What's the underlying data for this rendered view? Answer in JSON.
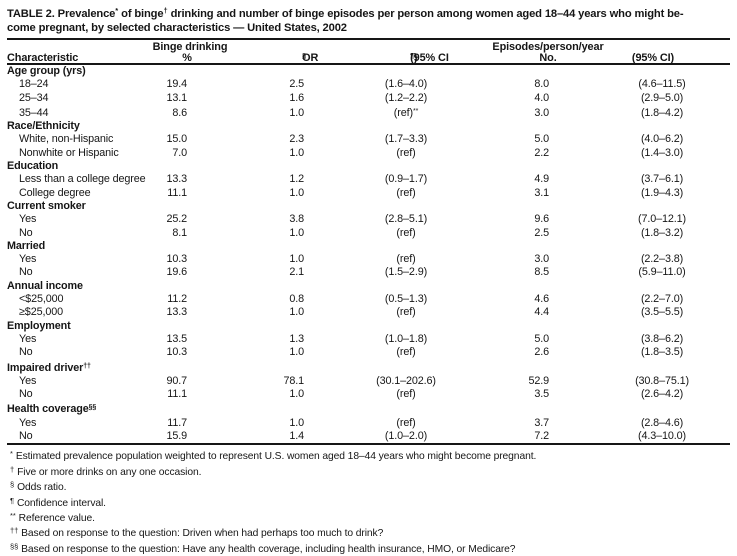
{
  "title": {
    "line1_part1": "TABLE 2. Prevalence",
    "line1_sup1": "*",
    "line1_part2": " of binge",
    "line1_sup2": "†",
    "line1_part3": " drinking and number of binge episodes per person among women aged 18–44 years who might be-",
    "line2": "come pregnant, by selected characteristics — United States, 2002"
  },
  "header": {
    "group_binge": "Binge drinking",
    "group_episodes": "Episodes/person/year",
    "characteristic": "Characteristic",
    "pct": "%",
    "or_label": "OR",
    "or_sup": "§",
    "ci1_pre": "(95% CI",
    "ci1_sup": "¶",
    "ci1_post": ")",
    "no_label": "No.",
    "ci2": "(95% CI)"
  },
  "table": {
    "rows": [
      {
        "type": "section",
        "label": "Age group (yrs)"
      },
      {
        "type": "data",
        "label": "18–24",
        "pct": "19.4",
        "or": "2.5",
        "ci": "(1.6–4.0)",
        "no": "8.0",
        "ci2": "(4.6–11.5)"
      },
      {
        "type": "data",
        "label": "25–34",
        "pct": "13.1",
        "or": "1.6",
        "ci": "(1.2–2.2)",
        "no": "4.0",
        "ci2": "(2.9–5.0)"
      },
      {
        "type": "data",
        "label": "35–44",
        "pct": "8.6",
        "or": "1.0",
        "ci": "(ref)",
        "ci_sup": "**",
        "no": "3.0",
        "ci2": "(1.8–4.2)"
      },
      {
        "type": "section",
        "label": "Race/Ethnicity"
      },
      {
        "type": "data",
        "label": "White, non-Hispanic",
        "pct": "15.0",
        "or": "2.3",
        "ci": "(1.7–3.3)",
        "no": "5.0",
        "ci2": "(4.0–6.2)"
      },
      {
        "type": "data",
        "label": "Nonwhite or Hispanic",
        "pct": "7.0",
        "or": "1.0",
        "ci": "(ref)",
        "no": "2.2",
        "ci2": "(1.4–3.0)"
      },
      {
        "type": "section",
        "label": "Education"
      },
      {
        "type": "data",
        "label": "Less than a college degree",
        "pct": "13.3",
        "or": "1.2",
        "ci": "(0.9–1.7)",
        "no": "4.9",
        "ci2": "(3.7–6.1)"
      },
      {
        "type": "data",
        "label": "College degree",
        "pct": "11.1",
        "or": "1.0",
        "ci": "(ref)",
        "no": "3.1",
        "ci2": "(1.9–4.3)"
      },
      {
        "type": "section",
        "label": "Current smoker"
      },
      {
        "type": "data",
        "label": "Yes",
        "pct": "25.2",
        "or": "3.8",
        "ci": "(2.8–5.1)",
        "no": "9.6",
        "ci2": "(7.0–12.1)"
      },
      {
        "type": "data",
        "label": "No",
        "pct": "8.1",
        "or": "1.0",
        "ci": "(ref)",
        "no": "2.5",
        "ci2": "(1.8–3.2)"
      },
      {
        "type": "section",
        "label": "Married"
      },
      {
        "type": "data",
        "label": "Yes",
        "pct": "10.3",
        "or": "1.0",
        "ci": "(ref)",
        "no": "3.0",
        "ci2": "(2.2–3.8)"
      },
      {
        "type": "data",
        "label": "No",
        "pct": "19.6",
        "or": "2.1",
        "ci": "(1.5–2.9)",
        "no": "8.5",
        "ci2": "(5.9–11.0)"
      },
      {
        "type": "section",
        "label": "Annual income"
      },
      {
        "type": "data",
        "label": "<$25,000",
        "pct": "11.2",
        "or": "0.8",
        "ci": "(0.5–1.3)",
        "no": "4.6",
        "ci2": "(2.2–7.0)"
      },
      {
        "type": "data",
        "label": "≥$25,000",
        "pct": "13.3",
        "or": "1.0",
        "ci": "(ref)",
        "no": "4.4",
        "ci2": "(3.5–5.5)"
      },
      {
        "type": "section",
        "label": "Employment"
      },
      {
        "type": "data",
        "label": "Yes",
        "pct": "13.5",
        "or": "1.3",
        "ci": "(1.0–1.8)",
        "no": "5.0",
        "ci2": "(3.8–6.2)"
      },
      {
        "type": "data",
        "label": "No",
        "pct": "10.3",
        "or": "1.0",
        "ci": "(ref)",
        "no": "2.6",
        "ci2": "(1.8–3.5)"
      },
      {
        "type": "section",
        "label": "Impaired driver",
        "label_sup": "††"
      },
      {
        "type": "data",
        "label": "Yes",
        "pct": "90.7",
        "or": "78.1",
        "ci": "(30.1–202.6)",
        "no": "52.9",
        "ci2": "(30.8–75.1)"
      },
      {
        "type": "data",
        "label": "No",
        "pct": "11.1",
        "or": "1.0",
        "ci": "(ref)",
        "no": "3.5",
        "ci2": "(2.6–4.2)"
      },
      {
        "type": "section",
        "label": "Health coverage",
        "label_sup": "§§"
      },
      {
        "type": "data",
        "label": "Yes",
        "pct": "11.7",
        "or": "1.0",
        "ci": "(ref)",
        "no": "3.7",
        "ci2": "(2.8–4.6)"
      },
      {
        "type": "data",
        "label": "No",
        "pct": "15.9",
        "or": "1.4",
        "ci": "(1.0–2.0)",
        "no": "7.2",
        "ci2": "(4.3–10.0)"
      }
    ]
  },
  "footnotes": [
    {
      "sup": "*",
      "text": "Estimated prevalence population weighted to represent U.S. women aged 18–44 years who might become pregnant."
    },
    {
      "sup": "†",
      "text": "Five or more drinks on any one occasion."
    },
    {
      "sup": "§",
      "text": "Odds ratio."
    },
    {
      "sup": "¶",
      "text": "Confidence interval."
    },
    {
      "sup": "**",
      "text": "Reference value."
    },
    {
      "sup": "††",
      "text": "Based on response to the question: Driven when had perhaps too much to drink?"
    },
    {
      "sup": "§§",
      "text": "Based on response to the question: Have any health coverage, including health insurance, HMO, or Medicare?"
    }
  ]
}
